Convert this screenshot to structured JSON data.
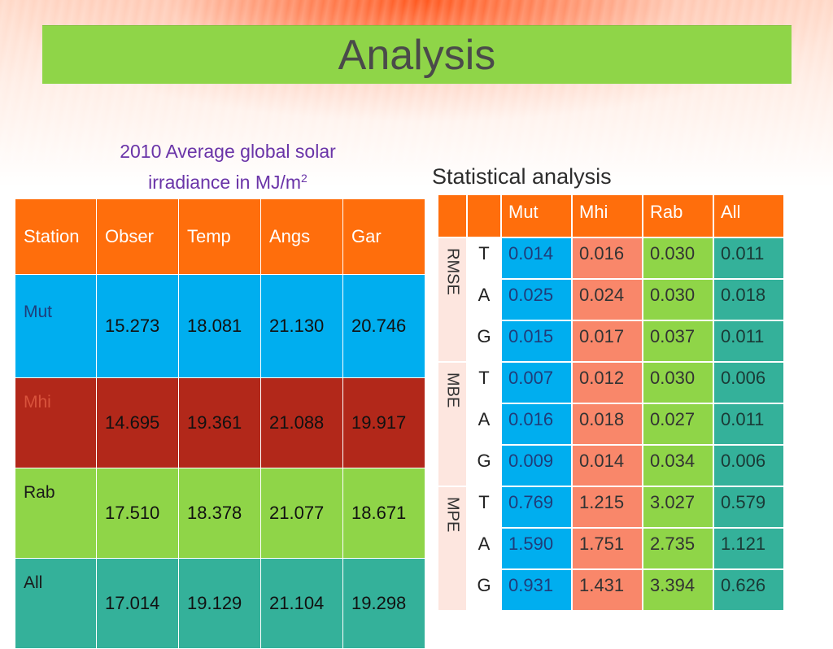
{
  "slide": {
    "title": "Analysis"
  },
  "left_table": {
    "caption_line1": "2010 Average global solar",
    "caption_line2": "irradiance in MJ/m",
    "caption_sup": "2",
    "headers": [
      "Station",
      "Obser",
      "Temp",
      "Angs",
      "Gar"
    ],
    "rows": [
      {
        "station": "Mut",
        "values": [
          "15.273",
          "18.081",
          "21.130",
          "20.746"
        ]
      },
      {
        "station": "Mhi",
        "values": [
          "14.695",
          "19.361",
          "21.088",
          "19.917"
        ]
      },
      {
        "station": "Rab",
        "values": [
          "17.510",
          "18.378",
          "21.077",
          "18.671"
        ]
      },
      {
        "station": "All",
        "values": [
          "17.014",
          "19.129",
          "21.104",
          "19.298"
        ]
      }
    ]
  },
  "right_table": {
    "caption": "Statistical analysis",
    "headers": [
      "",
      "",
      "Mut",
      "Mhi",
      "Rab",
      "All"
    ],
    "groups": [
      {
        "name": "RMSE",
        "rows": [
          {
            "model": "T",
            "values": [
              "0.014",
              "0.016",
              "0.030",
              "0.011"
            ]
          },
          {
            "model": "A",
            "values": [
              "0.025",
              "0.024",
              "0.030",
              "0.018"
            ]
          },
          {
            "model": "G",
            "values": [
              "0.015",
              "0.017",
              "0.037",
              "0.011"
            ]
          }
        ]
      },
      {
        "name": "MBE",
        "rows": [
          {
            "model": "T",
            "values": [
              "0.007",
              "0.012",
              "0.030",
              "0.006"
            ]
          },
          {
            "model": "A",
            "values": [
              "0.016",
              "0.018",
              "0.027",
              "0.011"
            ]
          },
          {
            "model": "G",
            "values": [
              "0.009",
              "0.014",
              "0.034",
              "0.006"
            ]
          }
        ]
      },
      {
        "name": "MPE",
        "rows": [
          {
            "model": "T",
            "values": [
              "0.769",
              "1.215",
              "3.027",
              "0.579"
            ]
          },
          {
            "model": "A",
            "values": [
              "1.590",
              "1.751",
              "2.735",
              "1.121"
            ]
          },
          {
            "model": "G",
            "values": [
              "0.931",
              "1.431",
              "3.394",
              "0.626"
            ]
          }
        ]
      }
    ]
  },
  "colors": {
    "title_bar": "#8fd548",
    "header_orange": "#ff6e0c",
    "mut_blue": "#00aeef",
    "mhi_red": "#b2281a",
    "rab_green": "#8fd548",
    "all_teal": "#34b19a",
    "caption_purple": "#6a34a8"
  }
}
